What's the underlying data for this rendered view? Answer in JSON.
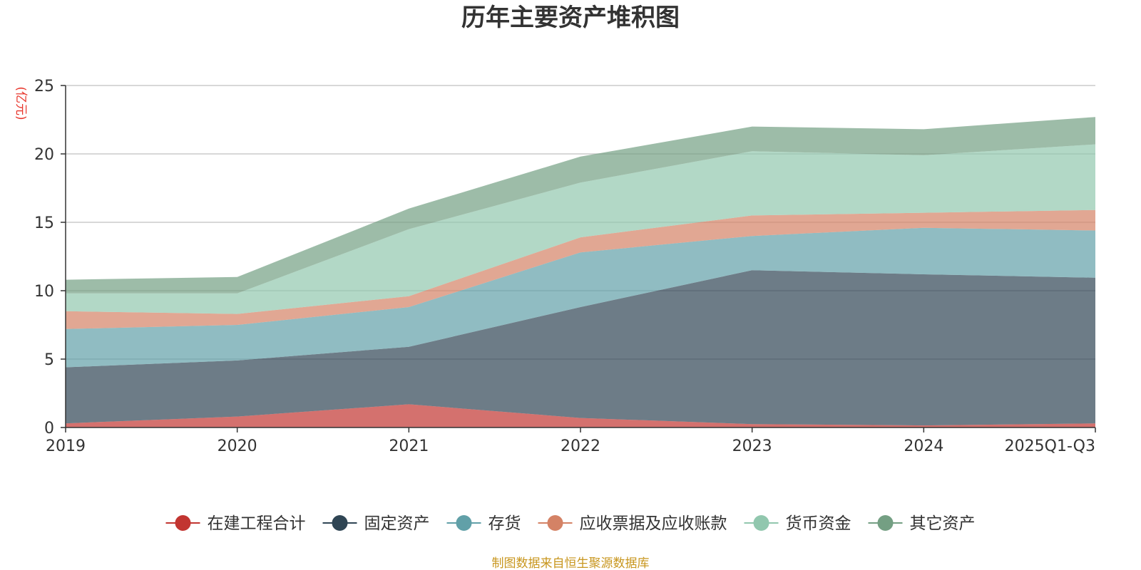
{
  "chart_data": {
    "type": "area",
    "stacked": true,
    "title": "历年主要资产堆积图",
    "ylabel": "(亿元)",
    "xlabel": "",
    "ylim": [
      0,
      25
    ],
    "yticks": [
      0,
      5,
      10,
      15,
      20,
      25
    ],
    "categories": [
      "2019",
      "2020",
      "2021",
      "2022",
      "2023",
      "2024",
      "2025Q1-Q3"
    ],
    "series": [
      {
        "name": "在建工程合计",
        "color": "#c23531",
        "values": [
          0.3,
          0.8,
          1.7,
          0.7,
          0.25,
          0.15,
          0.3
        ]
      },
      {
        "name": "固定资产",
        "color": "#2f4554",
        "values": [
          4.1,
          4.1,
          4.2,
          8.1,
          11.25,
          11.05,
          10.65
        ]
      },
      {
        "name": "存货",
        "color": "#61a0a8",
        "values": [
          2.8,
          2.6,
          2.9,
          4.0,
          2.5,
          3.4,
          3.45
        ]
      },
      {
        "name": "应收票据及应收账款",
        "color": "#d48265",
        "values": [
          1.3,
          0.8,
          0.8,
          1.1,
          1.5,
          1.1,
          1.5
        ]
      },
      {
        "name": "货币资金",
        "color": "#91c7ae",
        "values": [
          1.3,
          1.5,
          4.9,
          4.0,
          4.7,
          4.2,
          4.8
        ]
      },
      {
        "name": "其它资产",
        "color": "#749f83",
        "values": [
          1.0,
          1.2,
          1.5,
          1.9,
          1.8,
          1.9,
          2.0
        ]
      }
    ],
    "legend_position": "bottom",
    "source": "制图数据来自恒生聚源数据库",
    "colors": {
      "title": "#333333",
      "axis": "#333333",
      "grid": "#cccccc",
      "unit": "#e8362c",
      "source": "#c8961e"
    }
  }
}
